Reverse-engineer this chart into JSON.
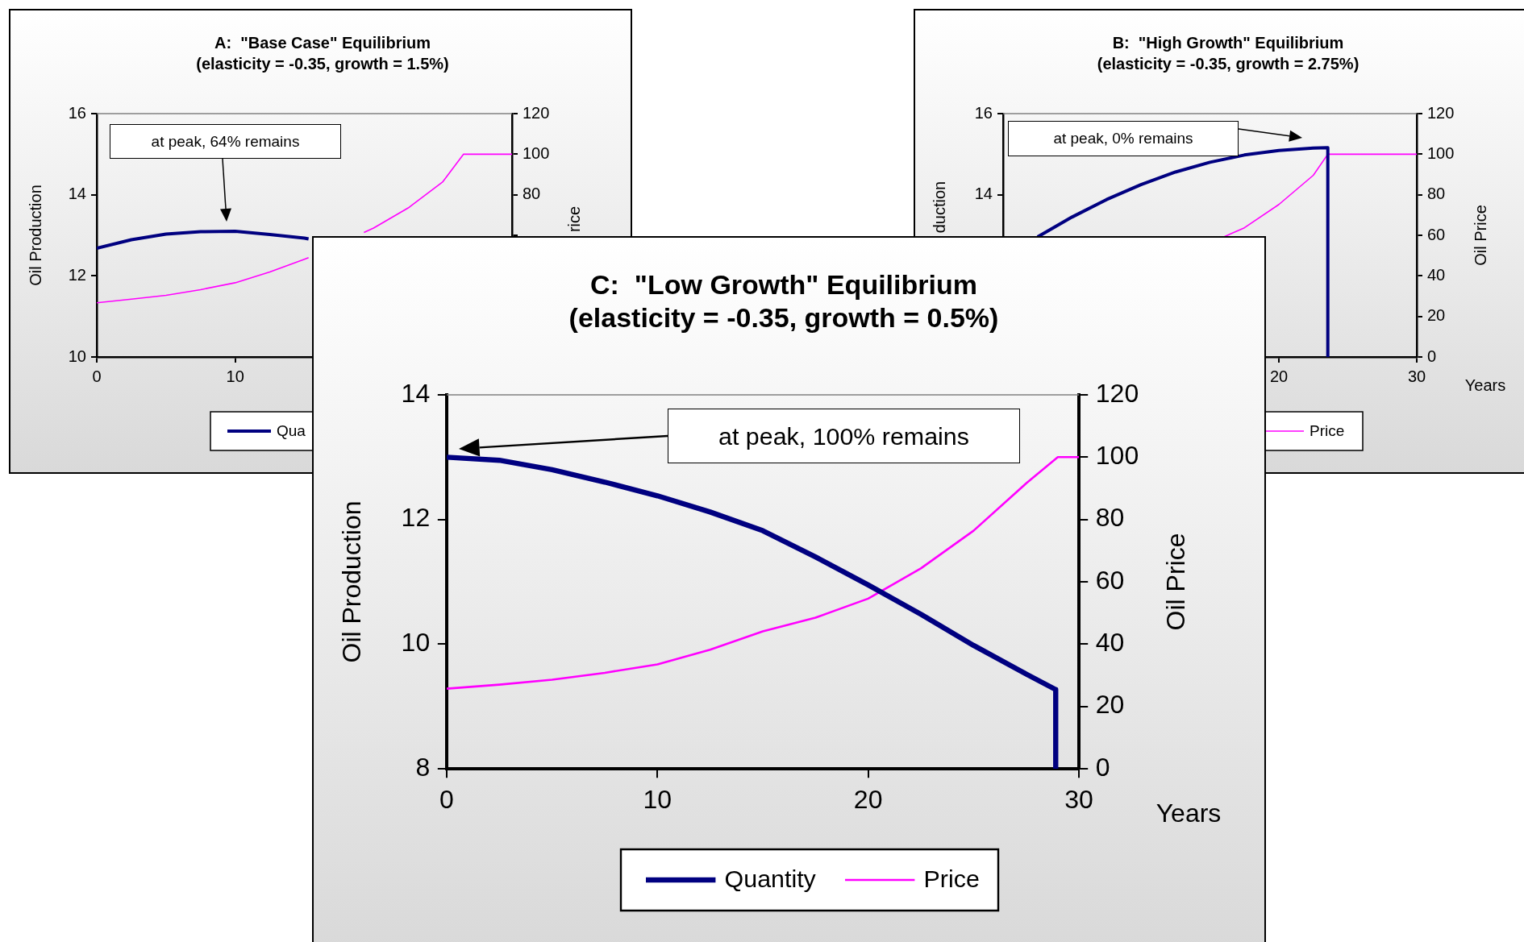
{
  "chart_data": [
    {
      "type": "line",
      "title": "A:  \"Base Case\" Equilibrium",
      "subtitle": "(elasticity = -0.35, growth = 1.5%)",
      "ylabel": "Oil Production",
      "y2label": "rice",
      "xlim": [
        0,
        30
      ],
      "xticks": [
        0,
        10
      ],
      "ylim": [
        10,
        16
      ],
      "yticks": [
        10,
        12,
        14,
        16
      ],
      "y2lim": [
        0,
        120
      ],
      "y2ticks": [
        {
          "value": 60,
          "label": null
        },
        80,
        100,
        120
      ],
      "legend": "bottom",
      "annotations": [
        "at peak, 64% remains"
      ],
      "series": [
        {
          "name": "Qua",
          "color": "#000080",
          "x": [
            0,
            2.5,
            5,
            7.5,
            10,
            12.5,
            15,
            15.3
          ],
          "values": [
            12.68,
            12.89,
            13.03,
            13.09,
            13.1,
            13.02,
            12.93,
            12.91
          ]
        },
        {
          "color": "#ff00ff",
          "axis": "y2",
          "x": [
            0,
            2.5,
            5,
            7.5,
            10,
            12.5,
            15,
            15.3,
            17,
            19.3,
            20,
            22.5,
            25,
            26.5,
            30
          ],
          "values": [
            26.7,
            28.5,
            30.4,
            33.2,
            36.6,
            41.9,
            48.2,
            49,
            null,
            61.4,
            63.6,
            73.5,
            86.4,
            100,
            100
          ]
        }
      ]
    },
    {
      "type": "line",
      "title": "B:  \"High Growth\" Equilibrium",
      "subtitle": "(elasticity = -0.35, growth = 2.75%)",
      "xlabel": "Years",
      "ylabel": "duction",
      "y2label": "Oil Price",
      "xlim": [
        0,
        30
      ],
      "xticks": [
        20,
        30
      ],
      "ylim": [
        10,
        16
      ],
      "yticks": [
        14,
        16
      ],
      "y2lim": [
        0,
        120
      ],
      "y2ticks": [
        0,
        20,
        40,
        60,
        80,
        100,
        120
      ],
      "legend": "bottom",
      "annotations": [
        "at peak, 0% remains"
      ],
      "series": [
        {
          "color": "#000080",
          "x": [
            2.5,
            5,
            7.5,
            10,
            12.5,
            15,
            17.5,
            20,
            22.5,
            23.55,
            23.55
          ],
          "values": [
            12.96,
            13.45,
            13.88,
            14.25,
            14.56,
            14.8,
            14.98,
            15.09,
            15.15,
            15.16,
            10
          ]
        },
        {
          "name": "Price",
          "color": "#ff00ff",
          "axis": "y2",
          "x": [
            16,
            17.5,
            20,
            22.5,
            23.55,
            30
          ],
          "values": [
            59.2,
            63.7,
            75.2,
            89.6,
            100,
            100
          ]
        }
      ]
    },
    {
      "type": "line",
      "title": "C:  \"Low Growth\" Equilibrium",
      "subtitle": "(elasticity = -0.35, growth = 0.5%)",
      "xlabel": "Years",
      "ylabel": "Oil Production",
      "y2label": "Oil Price",
      "xlim": [
        0,
        30
      ],
      "xticks": [
        0,
        10,
        20,
        30
      ],
      "ylim": [
        8,
        14
      ],
      "yticks": [
        8,
        10,
        12,
        14
      ],
      "y2lim": [
        0,
        120
      ],
      "y2ticks": [
        0,
        20,
        40,
        60,
        80,
        100,
        120
      ],
      "legend": "bottom",
      "annotations": [
        "at peak, 100% remains"
      ],
      "series": [
        {
          "name": "Quantity",
          "color": "#000080",
          "x": [
            0,
            2.5,
            5,
            7.5,
            10,
            12.5,
            15,
            17.5,
            20,
            22.5,
            25,
            27.5,
            28.9,
            28.9
          ],
          "values": [
            13.0,
            12.95,
            12.8,
            12.6,
            12.38,
            12.12,
            11.82,
            11.4,
            10.95,
            10.48,
            9.98,
            9.52,
            9.27,
            8
          ]
        },
        {
          "name": "Price",
          "color": "#ff00ff",
          "axis": "y2",
          "x": [
            0,
            2.5,
            5,
            7.5,
            10,
            12.5,
            15,
            17.5,
            20,
            22.5,
            25,
            27.5,
            29,
            30
          ],
          "values": [
            25.7,
            27,
            28.6,
            30.8,
            33.5,
            38.2,
            44.1,
            48.5,
            54.6,
            64.3,
            76.4,
            91.6,
            100,
            100
          ]
        }
      ]
    }
  ]
}
